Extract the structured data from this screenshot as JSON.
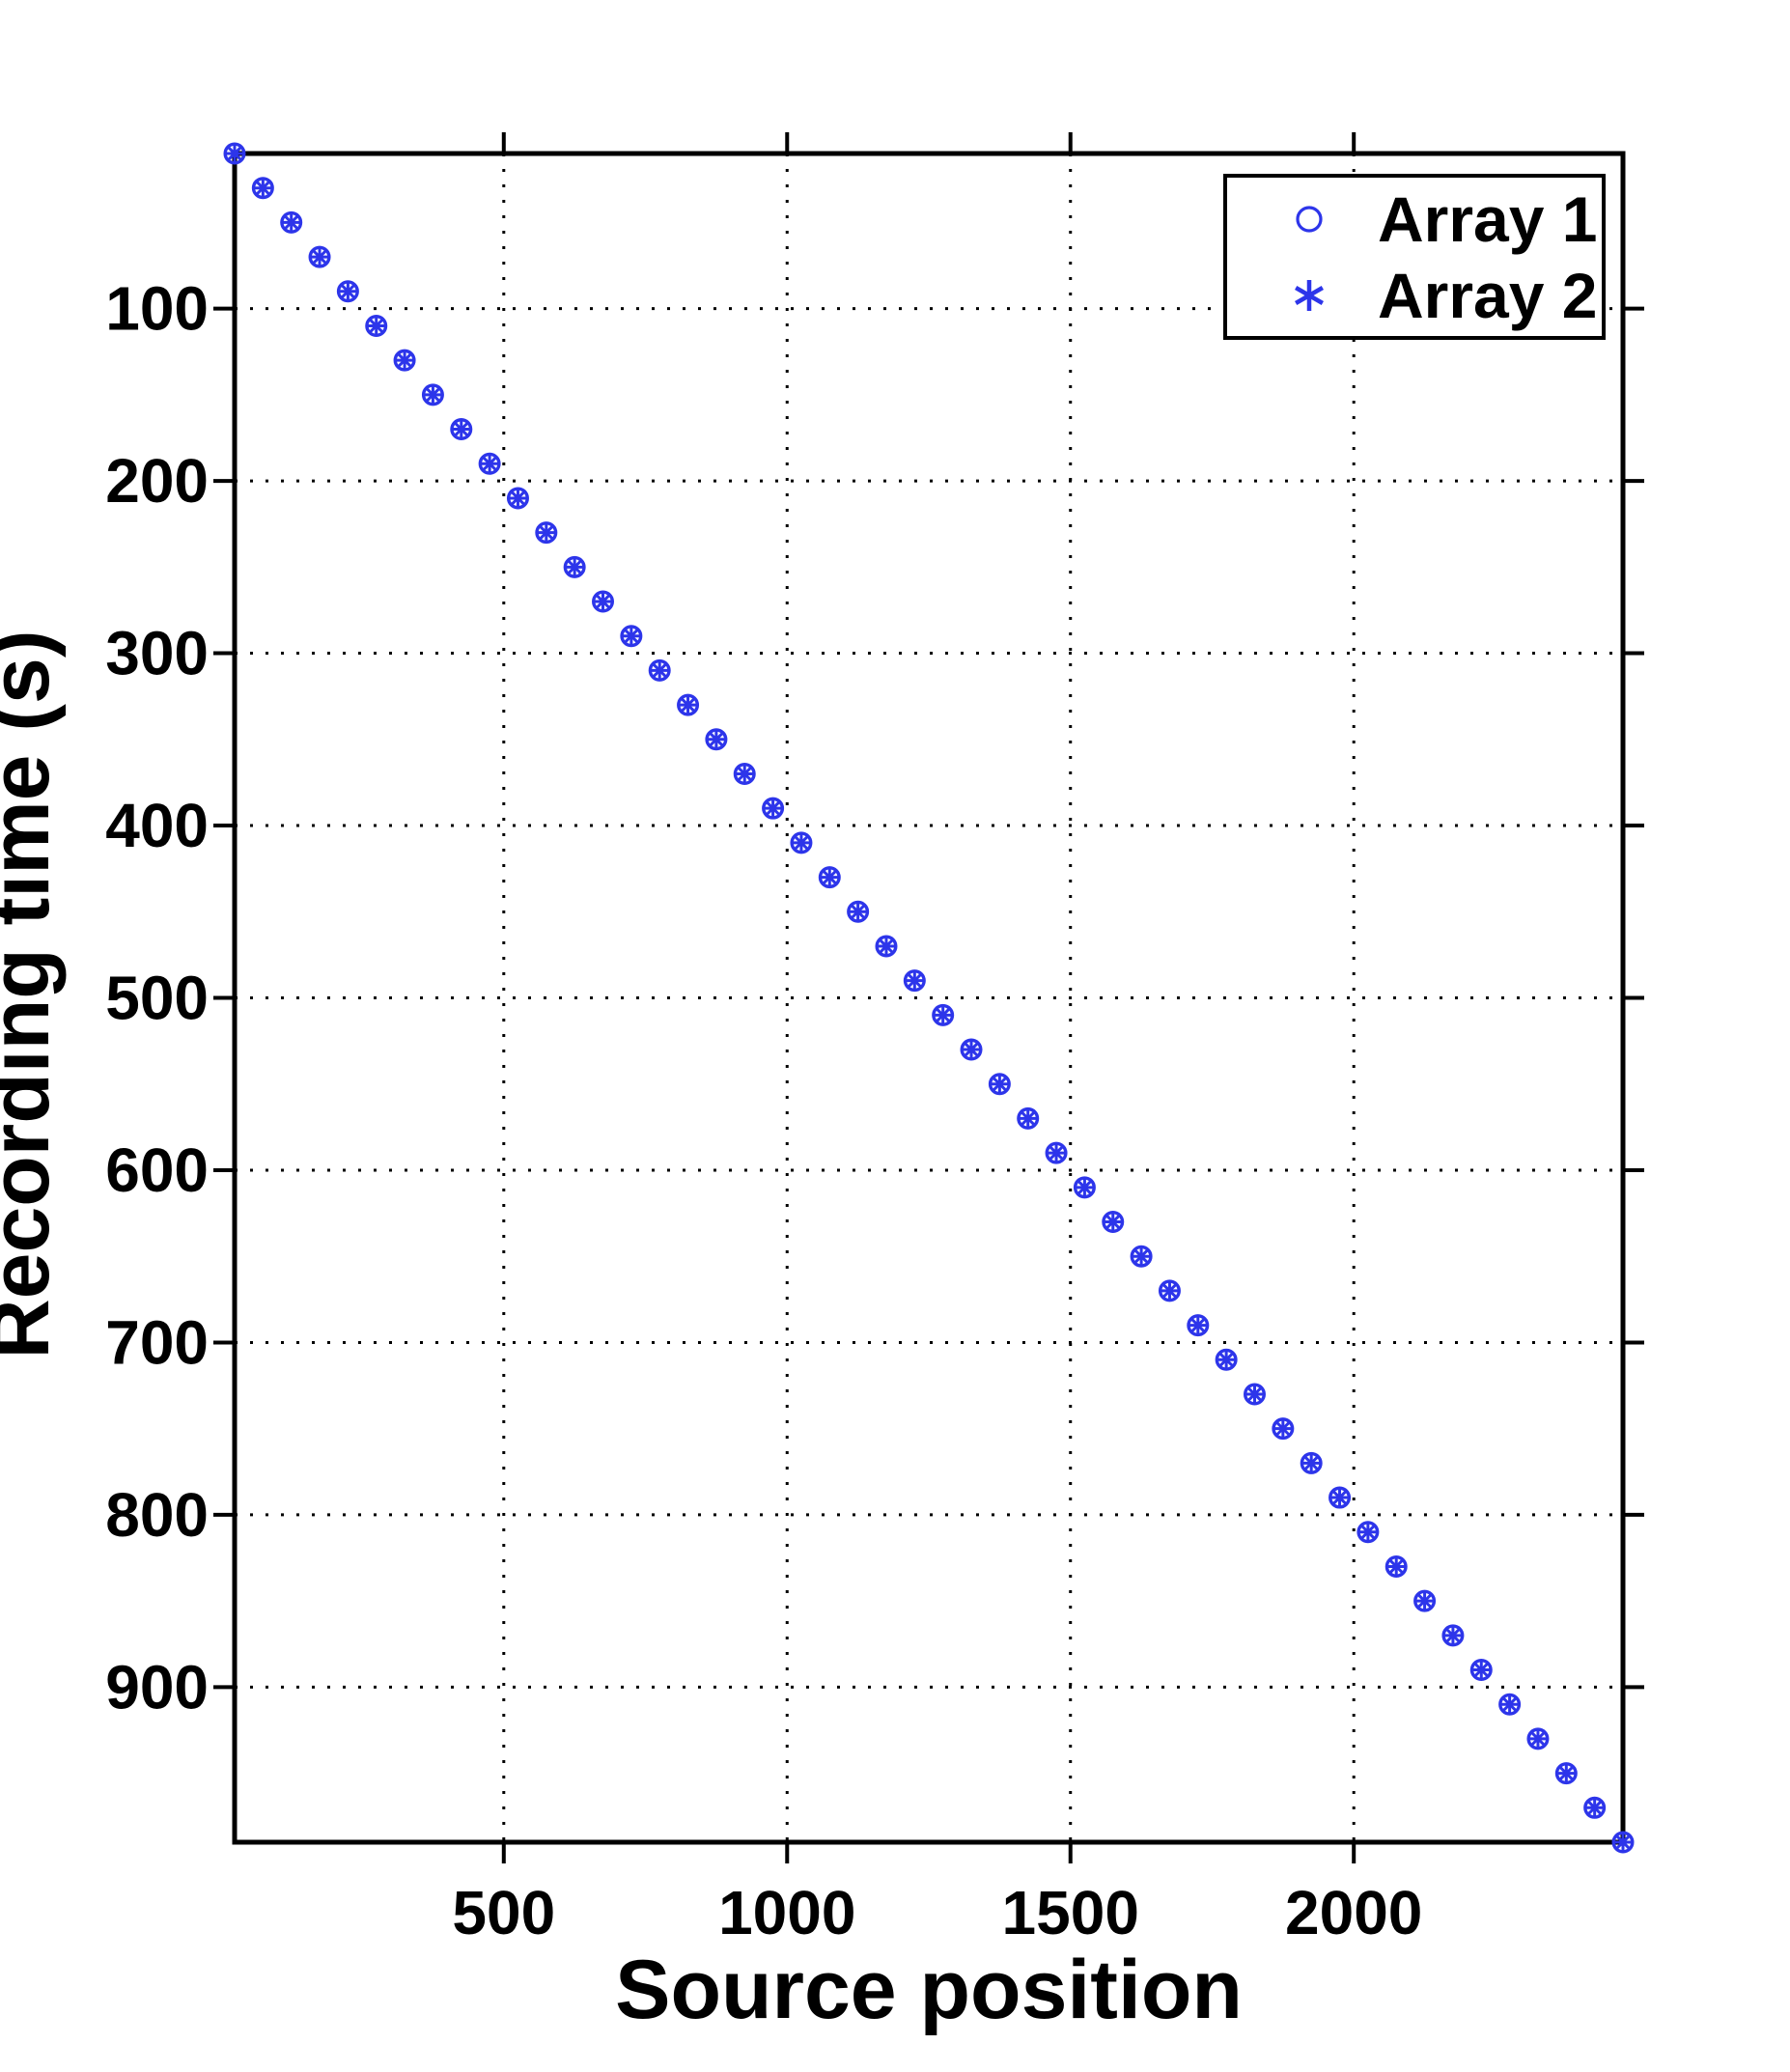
{
  "figure": {
    "background": "#ffffff"
  },
  "chart_data": {
    "type": "scatter",
    "title": "",
    "xlabel": "Source position",
    "ylabel": "Recording time (s)",
    "xlim": [
      25,
      2475
    ],
    "ylim": [
      10,
      990
    ],
    "y_axis_reversed": true,
    "xticks": [
      500,
      1000,
      1500,
      2000
    ],
    "yticks": [
      100,
      200,
      300,
      400,
      500,
      600,
      700,
      800,
      900
    ],
    "grid": "dotted",
    "legend_position": "top-right",
    "x": [
      25,
      75,
      125,
      175,
      225,
      275,
      325,
      375,
      425,
      475,
      525,
      575,
      625,
      675,
      725,
      775,
      825,
      875,
      925,
      975,
      1025,
      1075,
      1125,
      1175,
      1225,
      1275,
      1325,
      1375,
      1425,
      1475,
      1525,
      1575,
      1625,
      1675,
      1725,
      1775,
      1825,
      1875,
      1925,
      1975,
      2025,
      2075,
      2125,
      2175,
      2225,
      2275,
      2325,
      2375,
      2425,
      2475
    ],
    "series": [
      {
        "name": "Array 1",
        "marker": "circle",
        "color": "#2d35ea",
        "values": [
          10,
          30,
          50,
          70,
          90,
          110,
          130,
          150,
          170,
          190,
          210,
          230,
          250,
          270,
          290,
          310,
          330,
          350,
          370,
          390,
          410,
          430,
          450,
          470,
          490,
          510,
          530,
          550,
          570,
          590,
          610,
          630,
          650,
          670,
          690,
          710,
          730,
          750,
          770,
          790,
          810,
          830,
          850,
          870,
          890,
          910,
          930,
          950,
          970,
          990
        ]
      },
      {
        "name": "Array 2",
        "marker": "asterisk",
        "color": "#2d35ea",
        "values": [
          10,
          30,
          50,
          70,
          90,
          110,
          130,
          150,
          170,
          190,
          210,
          230,
          250,
          270,
          290,
          310,
          330,
          350,
          370,
          390,
          410,
          430,
          450,
          470,
          490,
          510,
          530,
          550,
          570,
          590,
          610,
          630,
          650,
          670,
          690,
          710,
          730,
          750,
          770,
          790,
          810,
          830,
          850,
          870,
          890,
          910,
          930,
          950,
          970,
          990
        ]
      }
    ]
  },
  "legend": {
    "entries": [
      {
        "label": "Array 1",
        "marker": "circle-icon"
      },
      {
        "label": "Array 2",
        "marker": "asterisk-icon"
      }
    ]
  },
  "colors": {
    "marker_blue": "#2d35ea",
    "axis": "#000000",
    "grid_dots": "#000000",
    "legend_border": "#000000",
    "legend_fill": "#ffffff"
  }
}
